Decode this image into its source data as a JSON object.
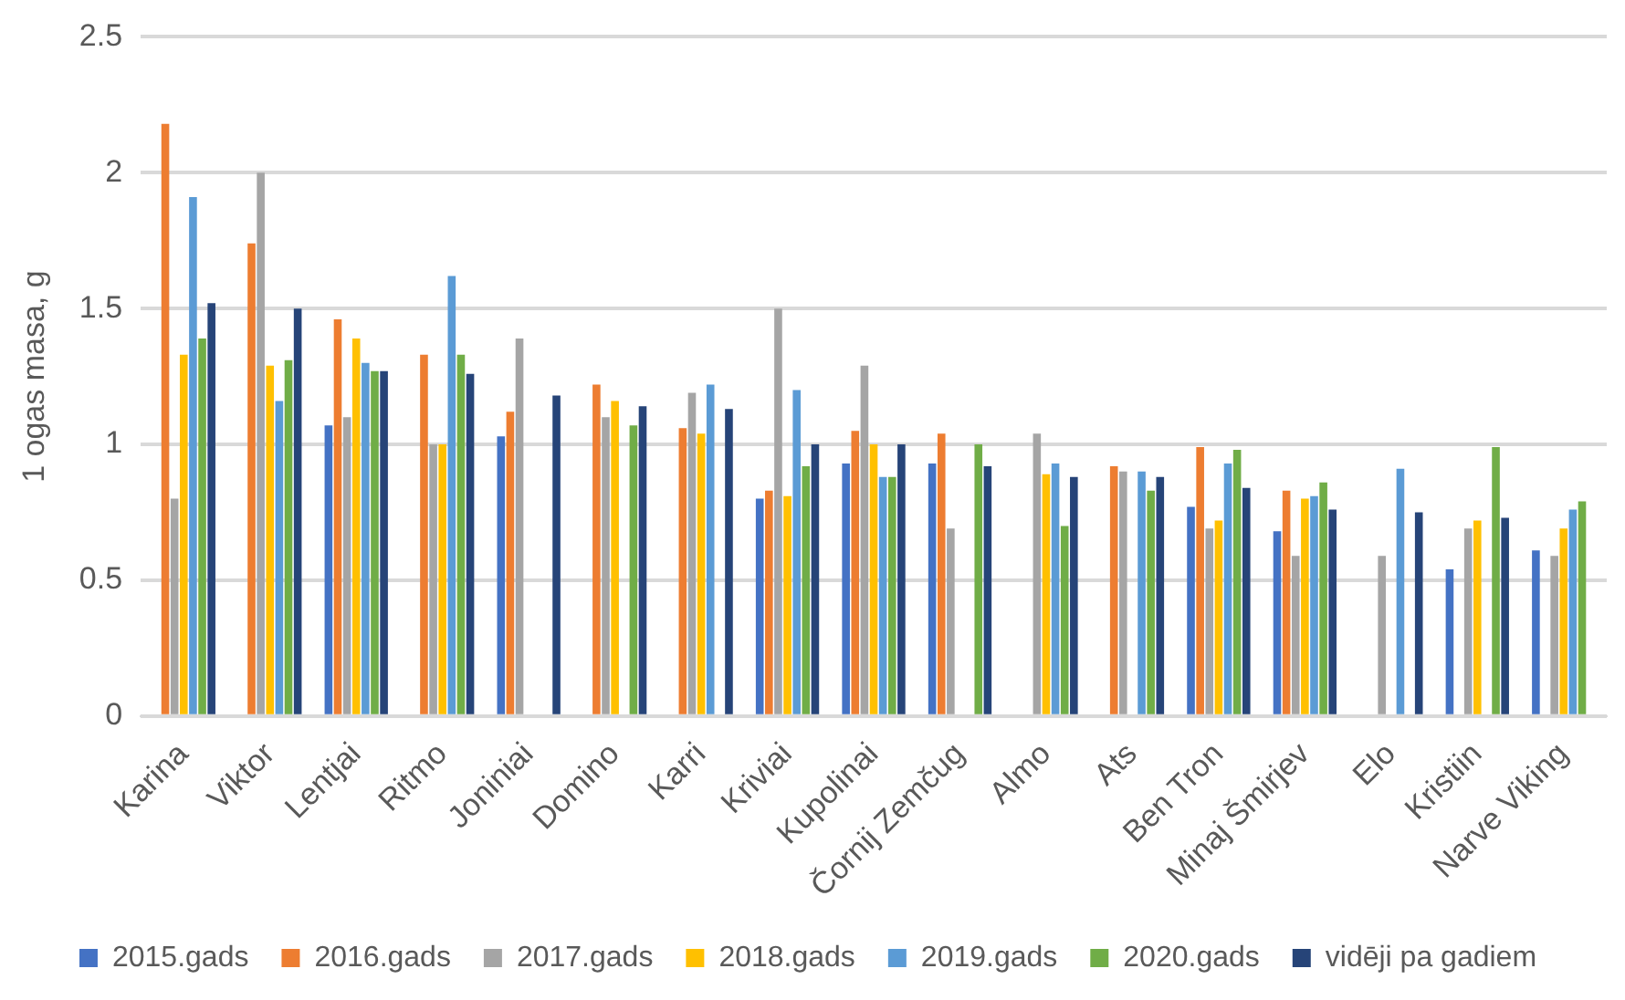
{
  "chart_data": {
    "type": "bar",
    "ylabel": "1 ogas masa, g",
    "categories": [
      "Karina",
      "Viktor",
      "Lentjai",
      "Ritmo",
      "Joniniai",
      "Domino",
      "Karri",
      "Kriviai",
      "Kupolinai",
      "Čornij Zemčug",
      "Almo",
      "Ats",
      "Ben Tron",
      "Minaj Šmirjev",
      "Elo",
      "Kristiin",
      "Narve Viking"
    ],
    "series": [
      {
        "name": "2015.gads",
        "color": "#4472c4",
        "values": [
          null,
          null,
          1.07,
          null,
          1.03,
          null,
          null,
          0.8,
          0.93,
          0.93,
          null,
          null,
          0.77,
          0.68,
          null,
          0.54,
          0.61
        ]
      },
      {
        "name": "2016.gads",
        "color": "#ed7d31",
        "values": [
          2.18,
          1.74,
          1.46,
          1.33,
          1.12,
          1.22,
          1.06,
          0.83,
          1.05,
          1.04,
          null,
          0.92,
          0.99,
          0.83,
          null,
          null,
          null
        ]
      },
      {
        "name": "2017.gads",
        "color": "#a5a5a5",
        "values": [
          0.8,
          2.0,
          1.1,
          1.0,
          1.39,
          1.1,
          1.19,
          1.5,
          1.29,
          0.69,
          1.04,
          0.9,
          0.69,
          0.59,
          0.59,
          0.69,
          0.59
        ]
      },
      {
        "name": "2018.gads",
        "color": "#ffc000",
        "values": [
          1.33,
          1.29,
          1.39,
          1.0,
          null,
          1.16,
          1.04,
          0.81,
          1.0,
          null,
          0.89,
          null,
          0.72,
          0.8,
          null,
          0.72,
          0.69
        ]
      },
      {
        "name": "2019.gads",
        "color": "#5b9bd5",
        "values": [
          1.91,
          1.16,
          1.3,
          1.62,
          null,
          null,
          1.22,
          1.2,
          0.88,
          null,
          0.93,
          0.9,
          0.93,
          0.81,
          0.91,
          null,
          0.76
        ]
      },
      {
        "name": "2020.gads",
        "color": "#70ad47",
        "values": [
          1.39,
          1.31,
          1.27,
          1.33,
          null,
          1.07,
          null,
          0.92,
          0.88,
          1.0,
          0.7,
          0.83,
          0.98,
          0.86,
          null,
          0.99,
          0.79
        ]
      },
      {
        "name": "vidēji pa gadiem",
        "color": "#264478",
        "values": [
          1.52,
          1.5,
          1.27,
          1.26,
          1.18,
          1.14,
          1.13,
          1.0,
          1.0,
          0.92,
          0.88,
          0.88,
          0.84,
          0.76,
          0.75,
          0.73,
          null
        ]
      }
    ],
    "ylim": [
      0,
      2.5
    ],
    "yticks": [
      0,
      0.5,
      1,
      1.5,
      2,
      2.5
    ],
    "grid": "y",
    "legend": "bottom"
  }
}
